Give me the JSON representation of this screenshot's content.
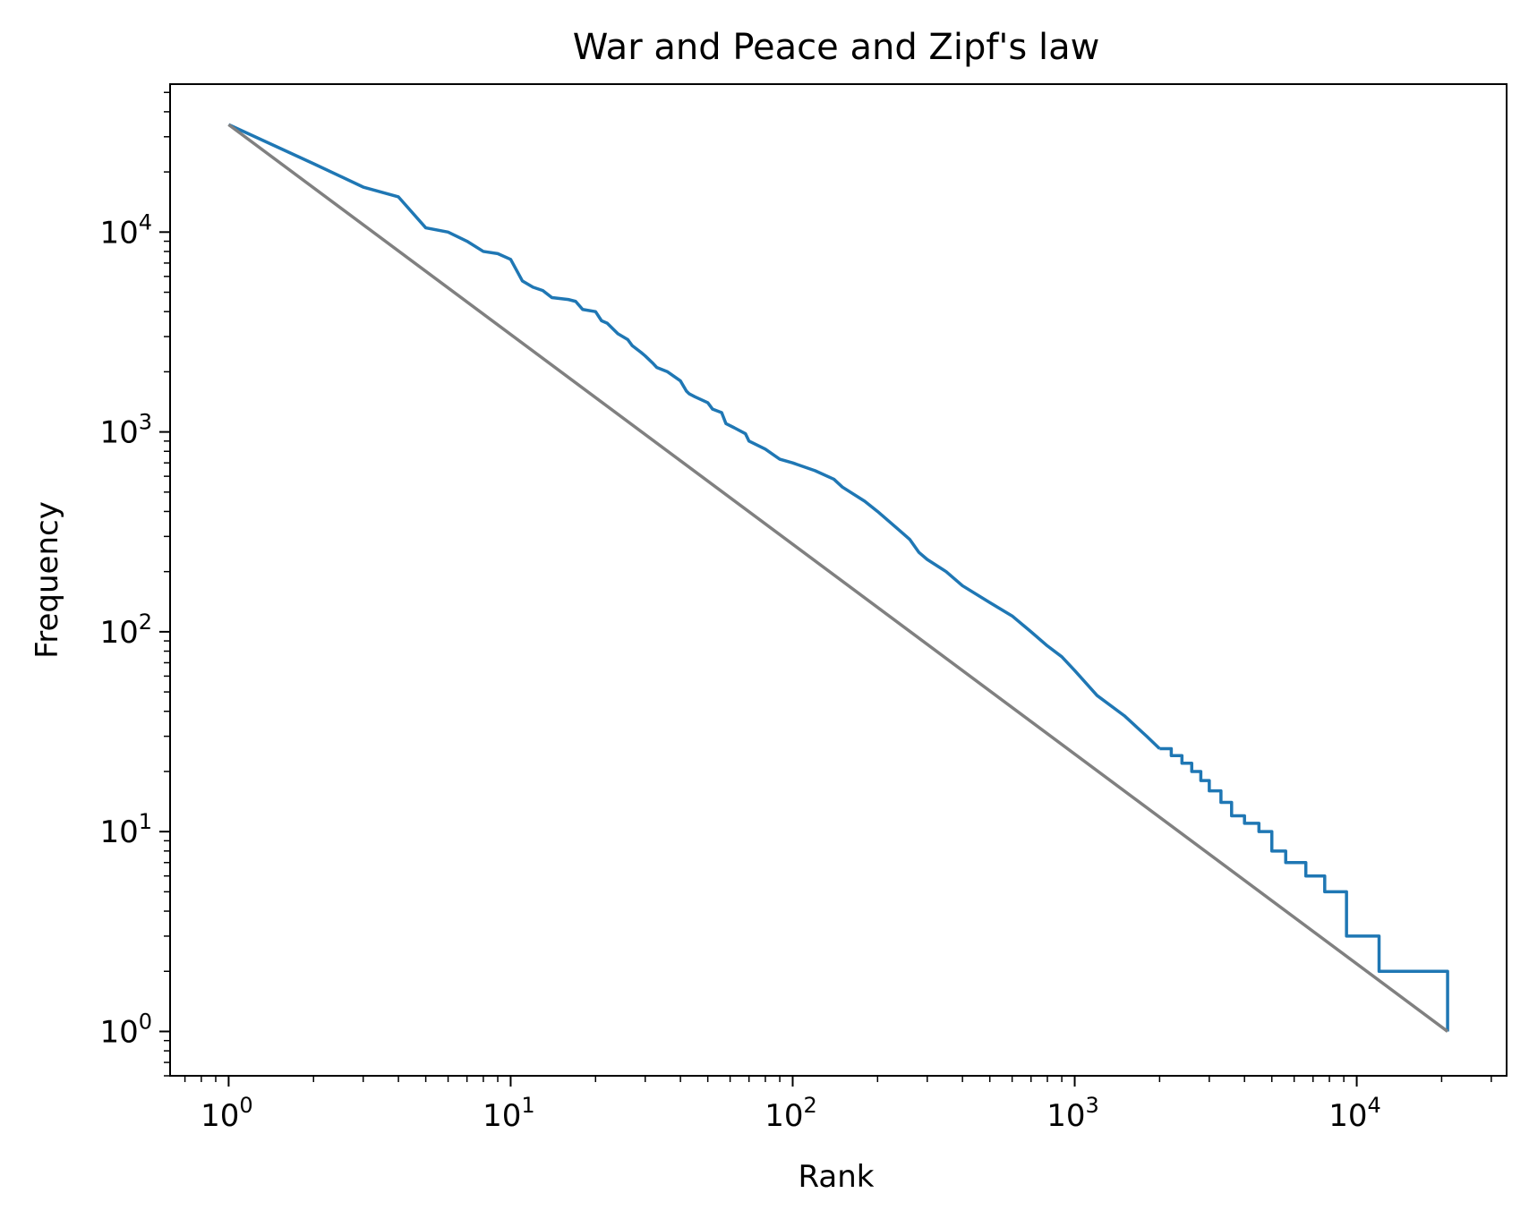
{
  "chart_data": {
    "type": "line",
    "title": "War and Peace and Zipf's law",
    "xlabel": "Rank",
    "ylabel": "Frequency",
    "xscale": "log",
    "yscale": "log",
    "xlim": [
      0.62,
      34000
    ],
    "ylim": [
      0.6,
      55000
    ],
    "grid": false,
    "legend": "none",
    "x_ticks": [
      {
        "value": 1,
        "base": "10",
        "exp": "0"
      },
      {
        "value": 10,
        "base": "10",
        "exp": "1"
      },
      {
        "value": 100,
        "base": "10",
        "exp": "2"
      },
      {
        "value": 1000,
        "base": "10",
        "exp": "3"
      },
      {
        "value": 10000,
        "base": "10",
        "exp": "4"
      }
    ],
    "y_ticks": [
      {
        "value": 1,
        "base": "10",
        "exp": "0"
      },
      {
        "value": 10,
        "base": "10",
        "exp": "1"
      },
      {
        "value": 100,
        "base": "10",
        "exp": "2"
      },
      {
        "value": 1000,
        "base": "10",
        "exp": "3"
      },
      {
        "value": 10000,
        "base": "10",
        "exp": "4"
      }
    ],
    "series": [
      {
        "color": "#1f77b4",
        "step": false,
        "x": [
          1,
          2,
          3,
          4,
          5,
          6,
          7,
          8,
          9,
          10,
          11,
          12,
          13,
          14,
          16,
          17,
          18,
          20,
          21,
          22,
          24,
          26,
          27,
          29,
          30,
          32,
          33,
          36,
          40,
          42,
          43,
          45,
          50,
          52,
          56,
          58,
          62,
          68,
          70,
          80,
          90,
          100,
          120,
          140,
          150,
          180,
          200,
          240,
          260,
          280,
          300,
          350,
          400,
          500,
          600,
          700,
          800,
          900,
          1000,
          1200,
          1500,
          1800,
          2000
        ],
        "values": [
          34500,
          22000,
          16800,
          15000,
          10500,
          10000,
          9000,
          8000,
          7800,
          7300,
          5700,
          5300,
          5100,
          4700,
          4600,
          4500,
          4100,
          4000,
          3600,
          3500,
          3100,
          2900,
          2700,
          2500,
          2400,
          2200,
          2100,
          2000,
          1800,
          1600,
          1550,
          1500,
          1400,
          1300,
          1250,
          1100,
          1050,
          980,
          900,
          820,
          730,
          700,
          640,
          580,
          530,
          450,
          400,
          320,
          290,
          250,
          230,
          200,
          170,
          140,
          120,
          100,
          85,
          75,
          64,
          48,
          38,
          30,
          26
        ]
      },
      {
        "color": "#1f77b4",
        "step": true,
        "x": [
          2000,
          2200,
          2400,
          2600,
          2800,
          3000,
          3300,
          3600,
          4000,
          4500,
          5000,
          5600,
          6600,
          7700,
          9200,
          12000,
          21000
        ],
        "values": [
          26,
          24,
          22,
          20,
          18,
          16,
          14,
          12,
          11,
          10,
          8,
          7,
          6,
          5,
          3,
          2,
          1
        ]
      },
      {
        "color": "#808080",
        "step": false,
        "x": [
          1,
          21000
        ],
        "values": [
          34500,
          1
        ]
      }
    ]
  }
}
